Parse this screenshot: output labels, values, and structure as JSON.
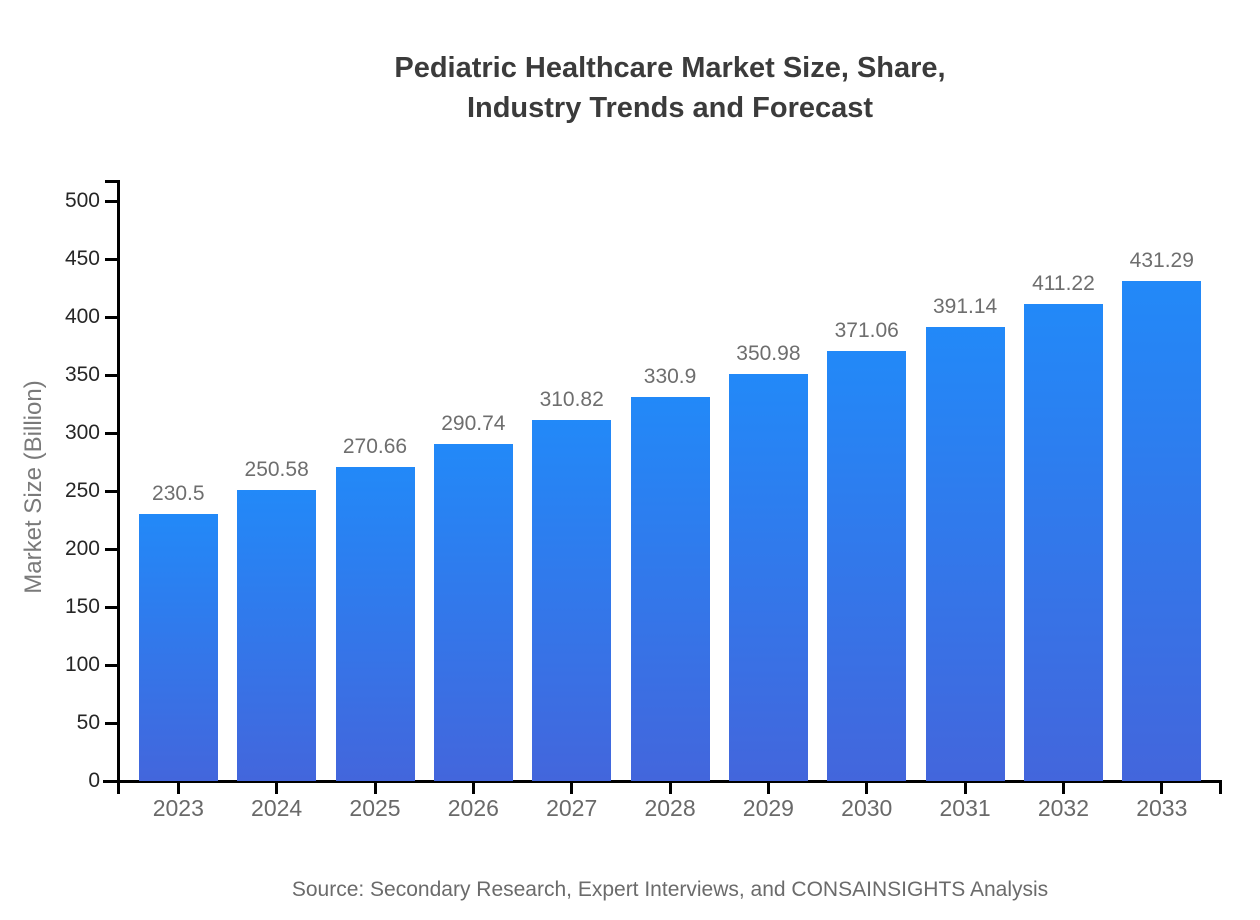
{
  "title": {
    "line1": "Pediatric Healthcare Market Size, Share,",
    "line2": "Industry Trends and Forecast"
  },
  "source_note": "Source: Secondary Research, Expert Interviews, and CONSAINSIGHTS Analysis",
  "chart_data": {
    "type": "bar",
    "title": "Pediatric Healthcare Market Size, Share, Industry Trends and Forecast",
    "categories": [
      "2023",
      "2024",
      "2025",
      "2026",
      "2027",
      "2028",
      "2029",
      "2030",
      "2031",
      "2032",
      "2033"
    ],
    "values": [
      230.5,
      250.58,
      270.66,
      290.74,
      310.82,
      330.9,
      350.98,
      371.06,
      391.14,
      411.22,
      431.29
    ],
    "xlabel": "",
    "ylabel": "Market Size (Billion)",
    "ylim": [
      0,
      500
    ],
    "ytick_step": 50,
    "grid": false,
    "legend_position": "none",
    "bar_gradient_top": "#2289f8",
    "bar_gradient_bottom": "#4366dc",
    "value_label_color": "#6e6e6e",
    "axis_color": "#000000"
  }
}
